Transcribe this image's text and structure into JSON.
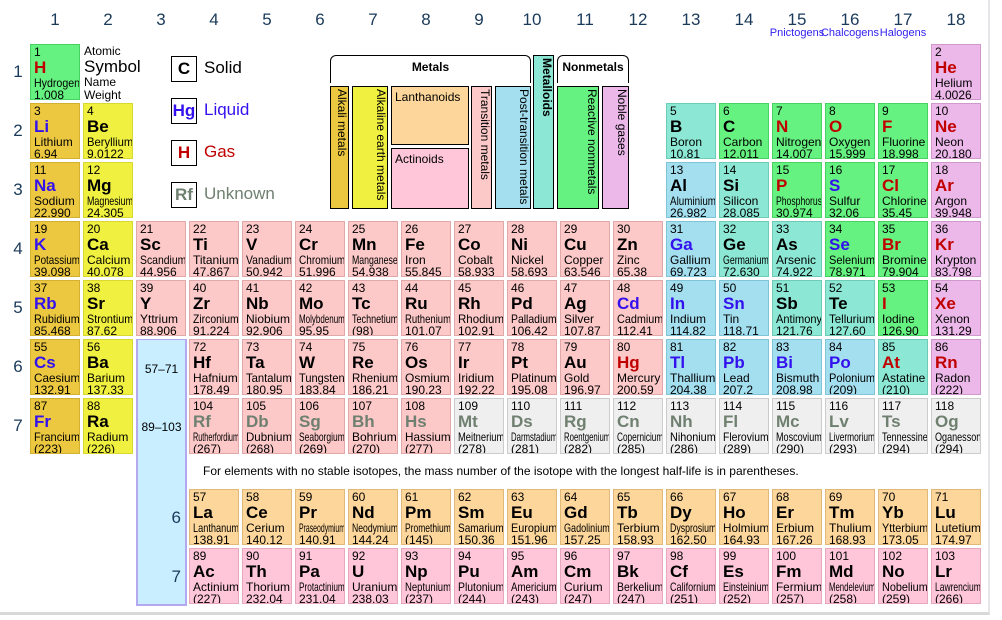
{
  "group_numbers": [
    "1",
    "2",
    "3",
    "4",
    "5",
    "6",
    "7",
    "8",
    "9",
    "10",
    "11",
    "12",
    "13",
    "14",
    "15",
    "16",
    "17",
    "18"
  ],
  "period_numbers": [
    "1",
    "2",
    "3",
    "4",
    "5",
    "6",
    "7"
  ],
  "families": [
    {
      "label": "Pnictogens",
      "group": 15
    },
    {
      "label": "Chalcogens",
      "group": 16
    },
    {
      "label": "Halogens",
      "group": 17
    }
  ],
  "key": {
    "number": "Atomic",
    "symbol": "Symbol",
    "name": "Name",
    "weight": "Weight"
  },
  "states": [
    {
      "symbol": "C",
      "label": "Solid",
      "color": "#000000"
    },
    {
      "symbol": "Hg",
      "label": "Liquid",
      "color": "#3311ee"
    },
    {
      "symbol": "H",
      "label": "Gas",
      "color": "#c00000"
    },
    {
      "symbol": "Rf",
      "label": "Unknown",
      "color": "#6f8070"
    }
  ],
  "categories": {
    "metals": "Metals",
    "nonmetals": "Nonmetals",
    "alkali": "Alkali metals",
    "alkaline": "Alkaline earth metals",
    "lanthanoids": "Lanthanoids",
    "actinoids": "Actinoids",
    "transition": "Transition metals",
    "post_transition": "Post-transition metals",
    "metalloids": "Metalloids",
    "reactive": "Reactive nonmetals",
    "noble": "Noble gases"
  },
  "placeholder": {
    "lanthanides_range": "57–71",
    "actinides_range": "89–103",
    "period6": "6",
    "period7": "7"
  },
  "footnote": "For elements with no stable isotopes, the mass number of the isotope with the longest half-life is in parentheses.",
  "elements": [
    [
      1,
      "H",
      "Hydrogen",
      "1.008",
      1,
      1,
      "nm_",
      "r"
    ],
    [
      2,
      "He",
      "Helium",
      "4.0026",
      18,
      1,
      "ng",
      "r"
    ],
    [
      3,
      "Li",
      "Lithium",
      "6.94",
      1,
      2,
      "am",
      "b"
    ],
    [
      4,
      "Be",
      "Beryllium",
      "9.0122",
      2,
      2,
      "ae",
      "k"
    ],
    [
      5,
      "B",
      "Boron",
      "10.81",
      13,
      2,
      "md",
      "k"
    ],
    [
      6,
      "C",
      "Carbon",
      "12.011",
      14,
      2,
      "nm_",
      "k"
    ],
    [
      7,
      "N",
      "Nitrogen",
      "14.007",
      15,
      2,
      "nm_",
      "r"
    ],
    [
      8,
      "O",
      "Oxygen",
      "15.999",
      16,
      2,
      "nm_",
      "r"
    ],
    [
      9,
      "F",
      "Fluorine",
      "18.998",
      17,
      2,
      "nm_",
      "r"
    ],
    [
      10,
      "Ne",
      "Neon",
      "20.180",
      18,
      2,
      "ng",
      "r"
    ],
    [
      11,
      "Na",
      "Sodium",
      "22.990",
      1,
      3,
      "am",
      "b"
    ],
    [
      12,
      "Mg",
      "Magnesium",
      "24.305",
      2,
      3,
      "ae",
      "k"
    ],
    [
      13,
      "Al",
      "Aluminium",
      "26.982",
      13,
      3,
      "pt",
      "k"
    ],
    [
      14,
      "Si",
      "Silicon",
      "28.085",
      14,
      3,
      "md",
      "k"
    ],
    [
      15,
      "P",
      "Phosphorus",
      "30.974",
      15,
      3,
      "nm_",
      "r"
    ],
    [
      16,
      "S",
      "Sulfur",
      "32.06",
      16,
      3,
      "nm_",
      "b"
    ],
    [
      17,
      "Cl",
      "Chlorine",
      "35.45",
      17,
      3,
      "nm_",
      "r"
    ],
    [
      18,
      "Ar",
      "Argon",
      "39.948",
      18,
      3,
      "ng",
      "r"
    ],
    [
      19,
      "K",
      "Potassium",
      "39.098",
      1,
      4,
      "am",
      "b"
    ],
    [
      20,
      "Ca",
      "Calcium",
      "40.078",
      2,
      4,
      "ae",
      "k"
    ],
    [
      21,
      "Sc",
      "Scandium",
      "44.956",
      3,
      4,
      "tm",
      "k"
    ],
    [
      22,
      "Ti",
      "Titanium",
      "47.867",
      4,
      4,
      "tm",
      "k"
    ],
    [
      23,
      "V",
      "Vanadium",
      "50.942",
      5,
      4,
      "tm",
      "k"
    ],
    [
      24,
      "Cr",
      "Chromium",
      "51.996",
      6,
      4,
      "tm",
      "k"
    ],
    [
      25,
      "Mn",
      "Manganese",
      "54.938",
      7,
      4,
      "tm",
      "k"
    ],
    [
      26,
      "Fe",
      "Iron",
      "55.845",
      8,
      4,
      "tm",
      "k"
    ],
    [
      27,
      "Co",
      "Cobalt",
      "58.933",
      9,
      4,
      "tm",
      "k"
    ],
    [
      28,
      "Ni",
      "Nickel",
      "58.693",
      10,
      4,
      "tm",
      "k"
    ],
    [
      29,
      "Cu",
      "Copper",
      "63.546",
      11,
      4,
      "tm",
      "k"
    ],
    [
      30,
      "Zn",
      "Zinc",
      "65.38",
      12,
      4,
      "tm",
      "k"
    ],
    [
      31,
      "Ga",
      "Gallium",
      "69.723",
      13,
      4,
      "pt",
      "b"
    ],
    [
      32,
      "Ge",
      "Germanium",
      "72.630",
      14,
      4,
      "md",
      "k"
    ],
    [
      33,
      "As",
      "Arsenic",
      "74.922",
      15,
      4,
      "md",
      "k"
    ],
    [
      34,
      "Se",
      "Selenium",
      "78.971",
      16,
      4,
      "nm_",
      "b"
    ],
    [
      35,
      "Br",
      "Bromine",
      "79.904",
      17,
      4,
      "nm_",
      "r"
    ],
    [
      36,
      "Kr",
      "Krypton",
      "83.798",
      18,
      4,
      "ng",
      "r"
    ],
    [
      37,
      "Rb",
      "Rubidium",
      "85.468",
      1,
      5,
      "am",
      "b"
    ],
    [
      38,
      "Sr",
      "Strontium",
      "87.62",
      2,
      5,
      "ae",
      "k"
    ],
    [
      39,
      "Y",
      "Yttrium",
      "88.906",
      3,
      5,
      "tm",
      "k"
    ],
    [
      40,
      "Zr",
      "Zirconium",
      "91.224",
      4,
      5,
      "tm",
      "k"
    ],
    [
      41,
      "Nb",
      "Niobium",
      "92.906",
      5,
      5,
      "tm",
      "k"
    ],
    [
      42,
      "Mo",
      "Molybdenum",
      "95.95",
      6,
      5,
      "tm",
      "k"
    ],
    [
      43,
      "Tc",
      "Technetium",
      "(98)",
      7,
      5,
      "tm",
      "k"
    ],
    [
      44,
      "Ru",
      "Ruthenium",
      "101.07",
      8,
      5,
      "tm",
      "k"
    ],
    [
      45,
      "Rh",
      "Rhodium",
      "102.91",
      9,
      5,
      "tm",
      "k"
    ],
    [
      46,
      "Pd",
      "Palladium",
      "106.42",
      10,
      5,
      "tm",
      "k"
    ],
    [
      47,
      "Ag",
      "Silver",
      "107.87",
      11,
      5,
      "tm",
      "k"
    ],
    [
      48,
      "Cd",
      "Cadmium",
      "112.41",
      12,
      5,
      "tm",
      "b"
    ],
    [
      49,
      "In",
      "Indium",
      "114.82",
      13,
      5,
      "pt",
      "b"
    ],
    [
      50,
      "Sn",
      "Tin",
      "118.71",
      14,
      5,
      "pt",
      "b"
    ],
    [
      51,
      "Sb",
      "Antimony",
      "121.76",
      15,
      5,
      "md",
      "k"
    ],
    [
      52,
      "Te",
      "Tellurium",
      "127.60",
      16,
      5,
      "md",
      "k"
    ],
    [
      53,
      "I",
      "Iodine",
      "126.90",
      17,
      5,
      "nm_",
      "r"
    ],
    [
      54,
      "Xe",
      "Xenon",
      "131.29",
      18,
      5,
      "ng",
      "r"
    ],
    [
      55,
      "Cs",
      "Caesium",
      "132.91",
      1,
      6,
      "am",
      "b"
    ],
    [
      56,
      "Ba",
      "Barium",
      "137.33",
      2,
      6,
      "ae",
      "k"
    ],
    [
      72,
      "Hf",
      "Hafnium",
      "178.49",
      4,
      6,
      "tm",
      "k"
    ],
    [
      73,
      "Ta",
      "Tantalum",
      "180.95",
      5,
      6,
      "tm",
      "k"
    ],
    [
      74,
      "W",
      "Tungsten",
      "183.84",
      6,
      6,
      "tm",
      "k"
    ],
    [
      75,
      "Re",
      "Rhenium",
      "186.21",
      7,
      6,
      "tm",
      "k"
    ],
    [
      76,
      "Os",
      "Osmium",
      "190.23",
      8,
      6,
      "tm",
      "k"
    ],
    [
      77,
      "Ir",
      "Iridium",
      "192.22",
      9,
      6,
      "tm",
      "k"
    ],
    [
      78,
      "Pt",
      "Platinum",
      "195.08",
      10,
      6,
      "tm",
      "k"
    ],
    [
      79,
      "Au",
      "Gold",
      "196.97",
      11,
      6,
      "tm",
      "k"
    ],
    [
      80,
      "Hg",
      "Mercury",
      "200.59",
      12,
      6,
      "tm",
      "r"
    ],
    [
      81,
      "Tl",
      "Thallium",
      "204.38",
      13,
      6,
      "pt",
      "b"
    ],
    [
      82,
      "Pb",
      "Lead",
      "207.2",
      14,
      6,
      "pt",
      "b"
    ],
    [
      83,
      "Bi",
      "Bismuth",
      "208.98",
      15,
      6,
      "pt",
      "b"
    ],
    [
      84,
      "Po",
      "Polonium",
      "(209)",
      16,
      6,
      "pt",
      "b"
    ],
    [
      85,
      "At",
      "Astatine",
      "(210)",
      17,
      6,
      "md",
      "r"
    ],
    [
      86,
      "Rn",
      "Radon",
      "(222)",
      18,
      6,
      "ng",
      "r"
    ],
    [
      87,
      "Fr",
      "Francium",
      "(223)",
      1,
      7,
      "am",
      "b"
    ],
    [
      88,
      "Ra",
      "Radium",
      "(226)",
      2,
      7,
      "ae",
      "k"
    ],
    [
      104,
      "Rf",
      "Rutherfordium",
      "(267)",
      4,
      7,
      "tm",
      "u"
    ],
    [
      105,
      "Db",
      "Dubnium",
      "(268)",
      5,
      7,
      "tm",
      "u"
    ],
    [
      106,
      "Sg",
      "Seaborgium",
      "(269)",
      6,
      7,
      "tm",
      "u"
    ],
    [
      107,
      "Bh",
      "Bohrium",
      "(270)",
      7,
      7,
      "tm",
      "u"
    ],
    [
      108,
      "Hs",
      "Hassium",
      "(277)",
      8,
      7,
      "tm",
      "u"
    ],
    [
      109,
      "Mt",
      "Meitnerium",
      "(278)",
      9,
      7,
      "uk",
      "u"
    ],
    [
      110,
      "Ds",
      "Darmstadium",
      "(281)",
      10,
      7,
      "uk",
      "u"
    ],
    [
      111,
      "Rg",
      "Roentgenium",
      "(282)",
      11,
      7,
      "uk",
      "u"
    ],
    [
      112,
      "Cn",
      "Copernicium",
      "(285)",
      12,
      7,
      "uk",
      "u"
    ],
    [
      113,
      "Nh",
      "Nihonium",
      "(286)",
      13,
      7,
      "uk",
      "u"
    ],
    [
      114,
      "Fl",
      "Flerovium",
      "(289)",
      14,
      7,
      "uk",
      "u"
    ],
    [
      115,
      "Mc",
      "Moscovium",
      "(290)",
      15,
      7,
      "uk",
      "u"
    ],
    [
      116,
      "Lv",
      "Livermorium",
      "(293)",
      16,
      7,
      "uk",
      "u"
    ],
    [
      117,
      "Ts",
      "Tennessine",
      "(294)",
      17,
      7,
      "uk",
      "u"
    ],
    [
      118,
      "Og",
      "Oganesson",
      "(294)",
      18,
      7,
      "uk",
      "u"
    ]
  ],
  "lanthanides": [
    [
      57,
      "La",
      "Lanthanum",
      "138.91"
    ],
    [
      58,
      "Ce",
      "Cerium",
      "140.12"
    ],
    [
      59,
      "Pr",
      "Praseodymium",
      "140.91"
    ],
    [
      60,
      "Nd",
      "Neodymium",
      "144.24"
    ],
    [
      61,
      "Pm",
      "Promethium",
      "(145)"
    ],
    [
      62,
      "Sm",
      "Samarium",
      "150.36"
    ],
    [
      63,
      "Eu",
      "Europium",
      "151.96"
    ],
    [
      64,
      "Gd",
      "Gadolinium",
      "157.25"
    ],
    [
      65,
      "Tb",
      "Terbium",
      "158.93"
    ],
    [
      66,
      "Dy",
      "Dysprosium",
      "162.50"
    ],
    [
      67,
      "Ho",
      "Holmium",
      "164.93"
    ],
    [
      68,
      "Er",
      "Erbium",
      "167.26"
    ],
    [
      69,
      "Tm",
      "Thulium",
      "168.93"
    ],
    [
      70,
      "Yb",
      "Ytterbium",
      "173.05"
    ],
    [
      71,
      "Lu",
      "Lutetium",
      "174.97"
    ]
  ],
  "actinides": [
    [
      89,
      "Ac",
      "Actinium",
      "(227)"
    ],
    [
      90,
      "Th",
      "Thorium",
      "232.04"
    ],
    [
      91,
      "Pa",
      "Protactinium",
      "231.04"
    ],
    [
      92,
      "U",
      "Uranium",
      "238.03"
    ],
    [
      93,
      "Np",
      "Neptunium",
      "(237)"
    ],
    [
      94,
      "Pu",
      "Plutonium",
      "(244)"
    ],
    [
      95,
      "Am",
      "Americium",
      "(243)"
    ],
    [
      96,
      "Cm",
      "Curium",
      "(247)"
    ],
    [
      97,
      "Bk",
      "Berkelium",
      "(247)"
    ],
    [
      98,
      "Cf",
      "Californium",
      "(251)"
    ],
    [
      99,
      "Es",
      "Einsteinium",
      "(252)"
    ],
    [
      100,
      "Fm",
      "Fermium",
      "(257)"
    ],
    [
      101,
      "Md",
      "Mendelevium",
      "(258)"
    ],
    [
      102,
      "No",
      "Nobelium",
      "(259)"
    ],
    [
      103,
      "Lr",
      "Lawrencium",
      "(266)"
    ]
  ]
}
